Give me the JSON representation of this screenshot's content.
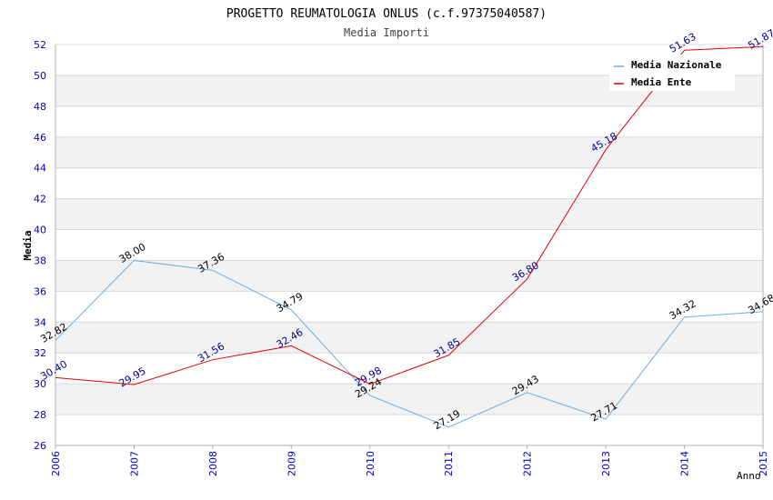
{
  "chart_data": {
    "type": "line",
    "title": "PROGETTO REUMATOLOGIA ONLUS (c.f.97375040587)",
    "subtitle": "Media Importi",
    "xlabel": "Anno",
    "ylabel": "Media",
    "ylim": [
      26,
      52
    ],
    "y_ticks": [
      "26",
      "28",
      "30",
      "32",
      "34",
      "36",
      "38",
      "40",
      "42",
      "44",
      "46",
      "48",
      "50",
      "52"
    ],
    "categories": [
      "2006",
      "2007",
      "2008",
      "2009",
      "2010",
      "2011",
      "2012",
      "2013",
      "2014",
      "2015"
    ],
    "grid": true,
    "legend_position": "top-right",
    "series": [
      {
        "name": "Media Nazionale",
        "color": "#6aaee8",
        "label_color": "#000000",
        "values": [
          32.82,
          38.0,
          37.36,
          34.79,
          29.24,
          27.19,
          29.43,
          27.71,
          34.32,
          34.68
        ],
        "labels": [
          "32.82",
          "38.00",
          "37.36",
          "34.79",
          "29.24",
          "27.19",
          "29.43",
          "27.71",
          "34.32",
          "34.68"
        ]
      },
      {
        "name": "Media Ente",
        "color": "#e00000",
        "label_color": "#00008b",
        "values": [
          30.4,
          29.95,
          31.56,
          32.46,
          29.98,
          31.85,
          36.8,
          45.18,
          51.63,
          51.87
        ],
        "labels": [
          "30.40",
          "29.95",
          "31.56",
          "32.46",
          "29.98",
          "31.85",
          "36.80",
          "45.18",
          "51.63",
          "51.87"
        ]
      }
    ],
    "colors": {
      "tick_text": "#0000cc",
      "band": "#f2f2f2",
      "grid": "#d8d8d8",
      "axis": "#b0b0b0",
      "title": "#000000",
      "subtitle": "#444444"
    }
  }
}
